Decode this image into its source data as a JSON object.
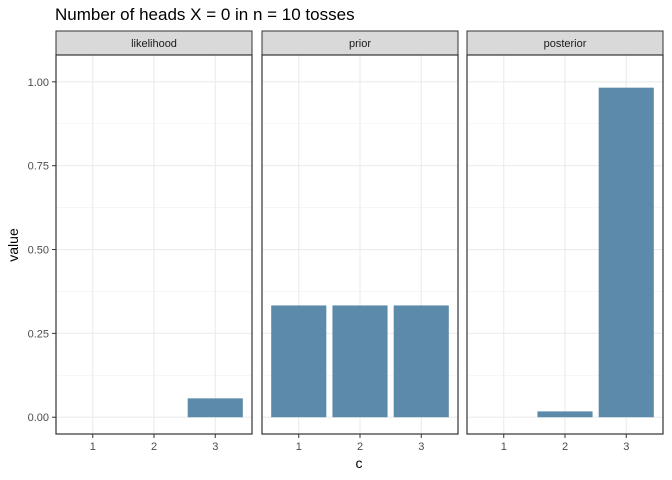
{
  "chart_data": {
    "type": "bar",
    "title": "Number of heads X = 0 in n = 10 tosses",
    "xlabel": "c",
    "ylabel": "value",
    "ylim": [
      -0.05,
      1.08
    ],
    "yticks": [
      0.0,
      0.25,
      0.5,
      0.75,
      1.0
    ],
    "ytick_labels": [
      "0.00",
      "0.25",
      "0.50",
      "0.75",
      "1.00"
    ],
    "categories": [
      "1",
      "2",
      "3"
    ],
    "bar_color": "#5b8aaa",
    "grid": true,
    "facets": [
      {
        "label": "likelihood",
        "values": [
          0.0,
          0.0,
          0.0563
        ]
      },
      {
        "label": "prior",
        "values": [
          0.3333,
          0.3333,
          0.3333
        ]
      },
      {
        "label": "posterior",
        "values": [
          0.0,
          0.0174,
          0.9826
        ]
      }
    ]
  }
}
